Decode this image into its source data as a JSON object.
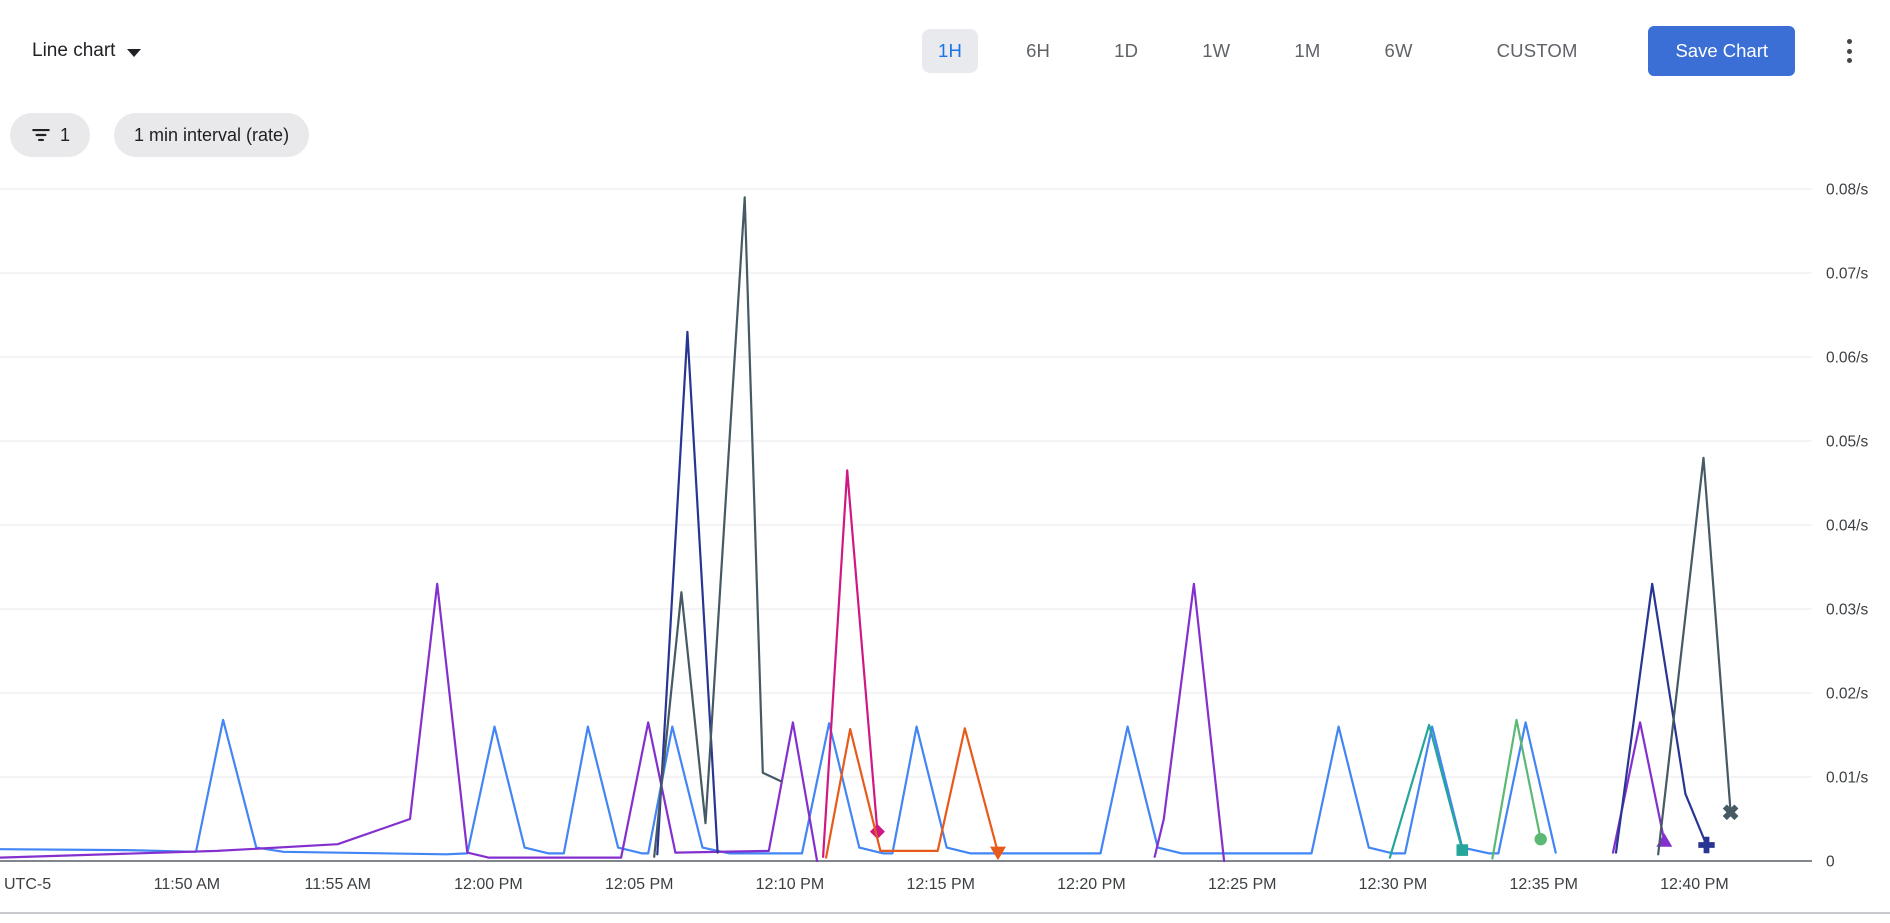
{
  "toolbar": {
    "chart_type_label": "Line chart",
    "time_ranges": [
      {
        "label": "1H",
        "selected": true
      },
      {
        "label": "6H",
        "selected": false
      },
      {
        "label": "1D",
        "selected": false
      },
      {
        "label": "1W",
        "selected": false
      },
      {
        "label": "1M",
        "selected": false
      },
      {
        "label": "6W",
        "selected": false
      },
      {
        "label": "CUSTOM",
        "selected": false
      }
    ],
    "save_button_label": "Save Chart"
  },
  "filter_bar": {
    "filter_chip_count": "1",
    "interval_chip_label": "1 min interval (rate)"
  },
  "colors": {
    "selected_range_text": "#1a73e8",
    "selected_range_bg": "#e8eaed",
    "save_button_bg": "#3b6fd6",
    "grid_line": "#e9eaec",
    "axis_line": "#80868b",
    "axis_text": "#3c4043"
  },
  "chart_data": {
    "type": "line",
    "title": "",
    "unit": "/s",
    "grid": true,
    "legend_position": "none",
    "y_axis": {
      "side": "right",
      "min": 0,
      "max": 0.0835,
      "ticks": [
        {
          "v": 0,
          "label": "0"
        },
        {
          "v": 0.01,
          "label": "0.01/s"
        },
        {
          "v": 0.02,
          "label": "0.02/s"
        },
        {
          "v": 0.03,
          "label": "0.03/s"
        },
        {
          "v": 0.04,
          "label": "0.04/s"
        },
        {
          "v": 0.05,
          "label": "0.05/s"
        },
        {
          "v": 0.06,
          "label": "0.06/s"
        },
        {
          "v": 0.07,
          "label": "0.07/s"
        },
        {
          "v": 0.08,
          "label": "0.08/s"
        }
      ]
    },
    "x_axis": {
      "timezone_label": "UTC-5",
      "t_unit": "minutes after 11:45 AM",
      "t_min": -1.2,
      "t_max": 58.9,
      "ticks": [
        {
          "t": 5,
          "label": "11:50 AM"
        },
        {
          "t": 10,
          "label": "11:55 AM"
        },
        {
          "t": 15,
          "label": "12:00 PM"
        },
        {
          "t": 20,
          "label": "12:05 PM"
        },
        {
          "t": 25,
          "label": "12:10 PM"
        },
        {
          "t": 30,
          "label": "12:15 PM"
        },
        {
          "t": 35,
          "label": "12:20 PM"
        },
        {
          "t": 40,
          "label": "12:25 PM"
        },
        {
          "t": 45,
          "label": "12:30 PM"
        },
        {
          "t": 50,
          "label": "12:35 PM"
        },
        {
          "t": 55,
          "label": "12:40 PM"
        }
      ]
    },
    "series": [
      {
        "name": "blue",
        "color": "#4285f4",
        "marker": null,
        "segments": [
          [
            [
              -1.2,
              0.0014
            ],
            [
              3,
              0.0013
            ],
            [
              5.3,
              0.0011
            ],
            [
              6.2,
              0.0168
            ],
            [
              7.3,
              0.0016
            ],
            [
              8.2,
              0.0011
            ],
            [
              13.6,
              0.0008
            ],
            [
              14.3,
              0.0009
            ],
            [
              15.2,
              0.016
            ],
            [
              16.2,
              0.0016
            ],
            [
              17,
              0.0009
            ],
            [
              17.5,
              0.0009
            ],
            [
              18.3,
              0.016
            ],
            [
              19.3,
              0.0016
            ],
            [
              20.1,
              0.0009
            ],
            [
              20.3,
              0.0009
            ],
            [
              21.1,
              0.016
            ],
            [
              22.1,
              0.0016
            ],
            [
              23,
              0.0009
            ],
            [
              25.4,
              0.0009
            ],
            [
              26.3,
              0.0164
            ],
            [
              27.3,
              0.0016
            ],
            [
              28.1,
              0.0009
            ],
            [
              28.4,
              0.0009
            ],
            [
              29.2,
              0.016
            ],
            [
              30.2,
              0.0016
            ],
            [
              31,
              0.0009
            ],
            [
              35.3,
              0.0009
            ],
            [
              36.2,
              0.016
            ],
            [
              37.2,
              0.0016
            ],
            [
              38,
              0.0009
            ],
            [
              42.3,
              0.0009
            ],
            [
              43.2,
              0.016
            ],
            [
              44.2,
              0.0016
            ],
            [
              45,
              0.0009
            ],
            [
              45.4,
              0.0009
            ],
            [
              46.3,
              0.016
            ],
            [
              47.3,
              0.0016
            ],
            [
              48.2,
              0.0009
            ],
            [
              48.5,
              0.0009
            ],
            [
              49.4,
              0.0165
            ],
            [
              50.4,
              0.001
            ]
          ]
        ]
      },
      {
        "name": "purple",
        "color": "#8430ce",
        "marker": "triangle-up",
        "segments": [
          [
            [
              -1.2,
              0.0004
            ],
            [
              6,
              0.0012
            ],
            [
              10,
              0.002
            ],
            [
              12.4,
              0.005
            ],
            [
              13.3,
              0.033
            ],
            [
              14.3,
              0.001
            ],
            [
              15,
              0.0004
            ],
            [
              19.4,
              0.0004
            ],
            [
              20.3,
              0.0165
            ],
            [
              21.2,
              0.001
            ],
            [
              24.3,
              0.0012
            ],
            [
              25.1,
              0.0165
            ],
            [
              25.9,
              0
            ]
          ],
          [
            [
              37.1,
              0.0005
            ],
            [
              37.4,
              0.005
            ],
            [
              38.4,
              0.033
            ],
            [
              39.4,
              0
            ]
          ],
          [
            [
              52.3,
              0.001
            ],
            [
              53.2,
              0.0165
            ],
            [
              54,
              0.0024
            ]
          ]
        ]
      },
      {
        "name": "pink",
        "color": "#d01884",
        "marker": "diamond",
        "segments": [
          [
            [
              26.1,
              0.0005
            ],
            [
              26.9,
              0.0465
            ],
            [
              27.9,
              0.0035
            ]
          ]
        ]
      },
      {
        "name": "orange",
        "color": "#e8591c",
        "marker": "triangle-down",
        "segments": [
          [
            [
              26.2,
              0.0004
            ],
            [
              27,
              0.0157
            ],
            [
              28,
              0.0012
            ],
            [
              29.9,
              0.0012
            ],
            [
              30.8,
              0.0158
            ],
            [
              31.9,
              0.001
            ]
          ]
        ]
      },
      {
        "name": "teal",
        "color": "#26a69a",
        "marker": "square",
        "segments": [
          [
            [
              44.9,
              0.0004
            ],
            [
              46.2,
              0.0162
            ],
            [
              47.3,
              0.0013
            ]
          ]
        ]
      },
      {
        "name": "green",
        "color": "#5bb974",
        "marker": "circle",
        "segments": [
          [
            [
              48.3,
              0.0003
            ],
            [
              49.1,
              0.0168
            ],
            [
              49.9,
              0.0026
            ]
          ]
        ]
      },
      {
        "name": "navy",
        "color": "#283593",
        "marker": "plus",
        "segments": [
          [
            [
              20.6,
              0.0008
            ],
            [
              21.6,
              0.063
            ],
            [
              22.6,
              0.001
            ]
          ],
          [
            [
              52.4,
              0.001
            ],
            [
              53.6,
              0.033
            ],
            [
              54.7,
              0.008
            ],
            [
              55.4,
              0.0019
            ]
          ]
        ]
      },
      {
        "name": "slate",
        "color": "#455a64",
        "marker": "x",
        "segments": [
          [
            [
              20.5,
              0.0005
            ],
            [
              21.4,
              0.032
            ],
            [
              22.2,
              0.0045
            ],
            [
              23.5,
              0.079
            ],
            [
              24.1,
              0.0105
            ],
            [
              24.7,
              0.0095
            ]
          ],
          [
            [
              53.8,
              0.0008
            ],
            [
              55.3,
              0.048
            ],
            [
              56.2,
              0.0058
            ]
          ]
        ]
      }
    ]
  }
}
